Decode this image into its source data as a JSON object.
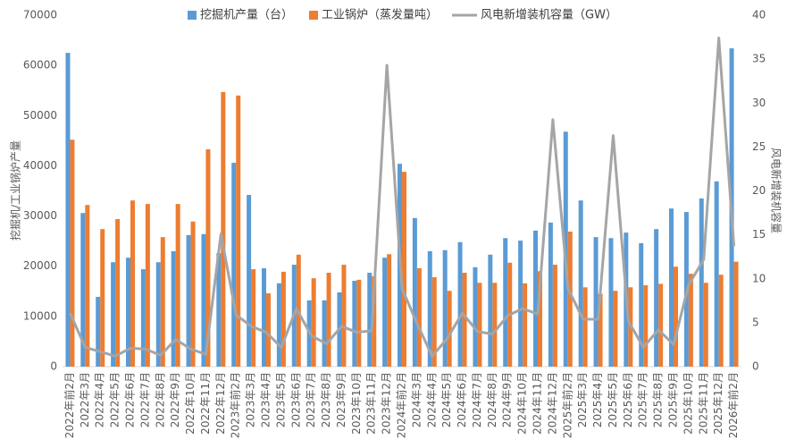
{
  "chart_data": {
    "type": "bar_line",
    "y_label": "挖掘机/工业锅炉产量",
    "y2_label": "风电新增装机容量",
    "categories": [
      "2022年前2月",
      "2022年3月",
      "2022年4月",
      "2022年5月",
      "2022年6月",
      "2022年7月",
      "2022年8月",
      "2022年9月",
      "2022年10月",
      "2022年11月",
      "2022年12月",
      "2023年前2月",
      "2023年3月",
      "2023年4月",
      "2023年5月",
      "2023年6月",
      "2023年7月",
      "2023年8月",
      "2023年9月",
      "2023年10月",
      "2023年11月",
      "2023年12月",
      "2024年前2月",
      "2024年3月",
      "2024年4月",
      "2024年5月",
      "2024年6月",
      "2024年7月",
      "2024年8月",
      "2024年9月",
      "2024年10月",
      "2024年11月",
      "2024年12月",
      "2025年前2月",
      "2025年3月",
      "2025年4月",
      "2025年5月",
      "2025年6月",
      "2025年7月",
      "2025年8月",
      "2025年9月",
      "2025年10月",
      "2025年11月",
      "2025年12月",
      "2026年前2月"
    ],
    "series": [
      {
        "name": "挖掘机产量（台）",
        "type": "bar",
        "color": "#5b9bd5",
        "values": [
          62500,
          30600,
          13900,
          20800,
          21700,
          19400,
          20800,
          23000,
          26200,
          26400,
          22600,
          40600,
          34200,
          19600,
          16600,
          20300,
          13200,
          13200,
          14800,
          17100,
          18700,
          21700,
          40400,
          29600,
          23000,
          23200,
          24800,
          19800,
          22300,
          25600,
          25100,
          27100,
          28700,
          46800,
          33100,
          25800,
          25600,
          26700,
          24600,
          27400,
          31500,
          30800,
          33500,
          36900,
          63400
        ]
      },
      {
        "name": "工业锅炉（蒸发量吨）",
        "type": "bar",
        "color": "#ed7d31",
        "values": [
          45200,
          32200,
          27400,
          29400,
          33100,
          32400,
          25800,
          32400,
          28900,
          43300,
          54700,
          54000,
          19400,
          14600,
          18900,
          22300,
          17600,
          18700,
          20300,
          17300,
          18000,
          22400,
          38800,
          19600,
          17800,
          15100,
          18700,
          16700,
          16700,
          20700,
          16600,
          19000,
          20300,
          26900,
          15800,
          14500,
          15100,
          15800,
          16200,
          16500,
          19900,
          18500,
          16700,
          18300,
          20900
        ]
      },
      {
        "name": "风电新增装机容量（GW）",
        "type": "line",
        "axis": "y2",
        "color": "#a5a5a5",
        "values": [
          6.1,
          2.2,
          1.7,
          1.2,
          2.1,
          2.0,
          1.3,
          3.1,
          2.0,
          1.4,
          15.1,
          5.9,
          4.6,
          3.9,
          2.2,
          6.6,
          3.5,
          2.6,
          4.6,
          3.9,
          4.1,
          34.3,
          8.9,
          4.9,
          1.2,
          3.2,
          6.1,
          4.0,
          3.7,
          5.8,
          6.6,
          6.0,
          28.1,
          8.9,
          5.4,
          5.4,
          26.3,
          5.2,
          2.2,
          4.2,
          2.5,
          9.3,
          12.2,
          37.4,
          13.7
        ]
      }
    ],
    "ylim": [
      0,
      70000
    ],
    "yticks": [
      0,
      10000,
      20000,
      30000,
      40000,
      50000,
      60000,
      70000
    ],
    "y2lim": [
      0,
      40
    ],
    "y2ticks": [
      0,
      5,
      10,
      15,
      20,
      25,
      30,
      35,
      40
    ],
    "grid": false,
    "legend": "top"
  }
}
